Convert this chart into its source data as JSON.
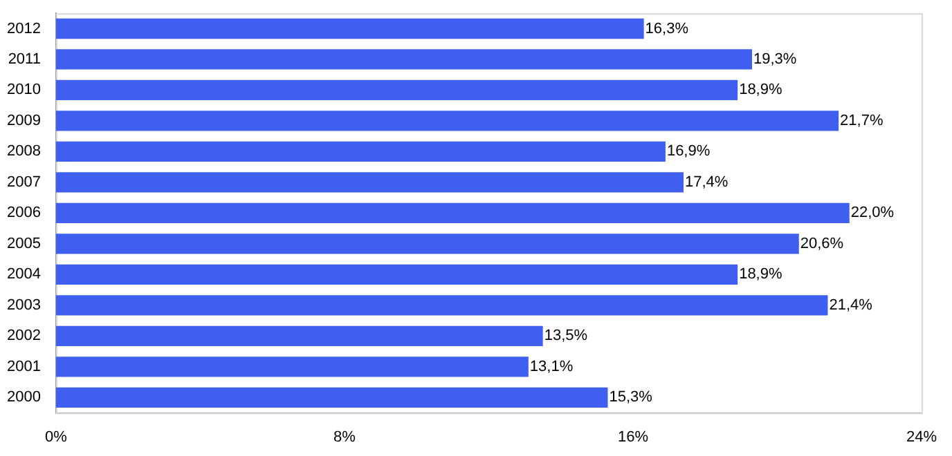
{
  "chart_data": {
    "type": "bar",
    "orientation": "horizontal",
    "categories": [
      "2012",
      "2011",
      "2010",
      "2009",
      "2008",
      "2007",
      "2006",
      "2005",
      "2004",
      "2003",
      "2002",
      "2001",
      "2000"
    ],
    "values": [
      16.3,
      19.3,
      18.9,
      21.7,
      16.9,
      17.4,
      22.0,
      20.6,
      18.9,
      21.4,
      13.5,
      13.1,
      15.3
    ],
    "value_labels": [
      "16,3%",
      "19,3%",
      "18,9%",
      "21,7%",
      "16,9%",
      "17,4%",
      "22,0%",
      "20,6%",
      "18,9%",
      "21,4%",
      "13,5%",
      "13,1%",
      "15,3%"
    ],
    "color": "#3f5ff0",
    "xlim": [
      0,
      24
    ],
    "xticks": [
      {
        "value": 0,
        "label": "0%"
      },
      {
        "value": 8,
        "label": "8%"
      },
      {
        "value": 16,
        "label": "16%"
      },
      {
        "value": 24,
        "label": "24%"
      }
    ],
    "grid": false,
    "legend": false
  }
}
